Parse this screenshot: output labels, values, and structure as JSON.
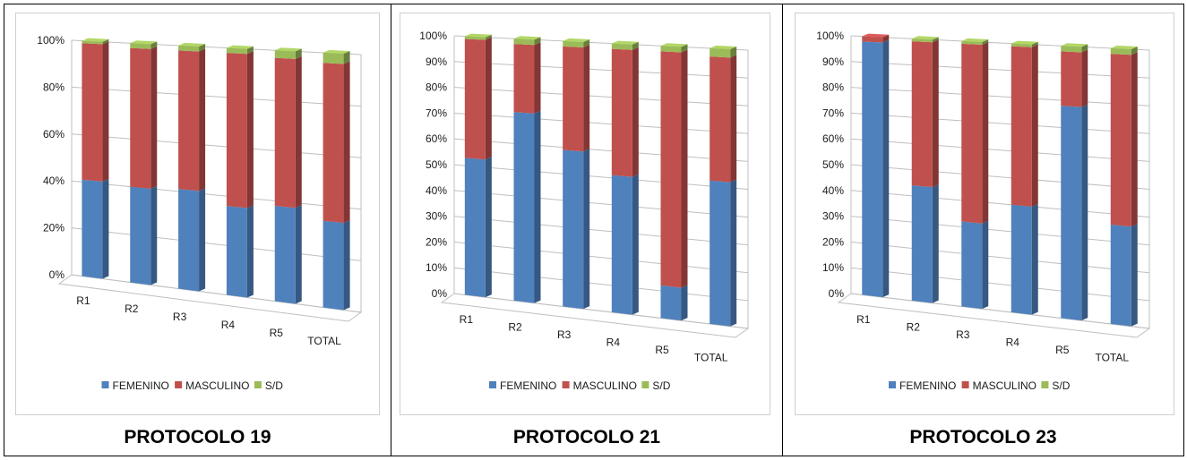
{
  "captions": [
    "PROTOCOLO 19",
    "PROTOCOLO 21",
    "PROTOCOLO 23"
  ],
  "colors": {
    "femenino": "#4f81bd",
    "masculino": "#c0504d",
    "sd": "#9bbb59"
  },
  "chart_data": [
    {
      "type": "bar",
      "stacked": true,
      "categories": [
        "R1",
        "R2",
        "R3",
        "R4",
        "R5",
        "TOTAL"
      ],
      "yticks": [
        "0%",
        "20%",
        "40%",
        "60%",
        "80%",
        "100%"
      ],
      "ylim": [
        0,
        100
      ],
      "grid": true,
      "legend_position": "bottom",
      "series": [
        {
          "name": "FEMENINO",
          "values": [
            41,
            40,
            41,
            36,
            38,
            34
          ]
        },
        {
          "name": "MASCULINO",
          "values": [
            58,
            58,
            57,
            62,
            59,
            62
          ]
        },
        {
          "name": "S/D",
          "values": [
            1,
            2,
            2,
            2,
            3,
            4
          ]
        }
      ]
    },
    {
      "type": "bar",
      "stacked": true,
      "categories": [
        "R1",
        "R2",
        "R3",
        "R4",
        "R5",
        "TOTAL"
      ],
      "yticks": [
        "0%",
        "10%",
        "20%",
        "30%",
        "40%",
        "50%",
        "60%",
        "70%",
        "80%",
        "90%",
        "100%"
      ],
      "ylim": [
        0,
        100
      ],
      "grid": true,
      "legend_position": "bottom",
      "series": [
        {
          "name": "FEMENINO",
          "values": [
            53,
            72,
            59,
            51,
            12,
            52
          ]
        },
        {
          "name": "MASCULINO",
          "values": [
            46,
            26,
            39,
            47,
            86,
            45
          ]
        },
        {
          "name": "S/D",
          "values": [
            1,
            2,
            2,
            2,
            2,
            3
          ]
        }
      ]
    },
    {
      "type": "bar",
      "stacked": true,
      "categories": [
        "R1",
        "R2",
        "R3",
        "R4",
        "R5",
        "TOTAL"
      ],
      "yticks": [
        "0%",
        "10%",
        "20%",
        "30%",
        "40%",
        "50%",
        "60%",
        "70%",
        "80%",
        "90%",
        "100%"
      ],
      "ylim": [
        0,
        100
      ],
      "grid": true,
      "legend_position": "bottom",
      "series": [
        {
          "name": "FEMENINO",
          "values": [
            98,
            44,
            32,
            40,
            78,
            36
          ]
        },
        {
          "name": "MASCULINO",
          "values": [
            2,
            55,
            67,
            59,
            20,
            62
          ]
        },
        {
          "name": "S/D",
          "values": [
            0,
            1,
            1,
            1,
            2,
            2
          ]
        }
      ]
    }
  ]
}
